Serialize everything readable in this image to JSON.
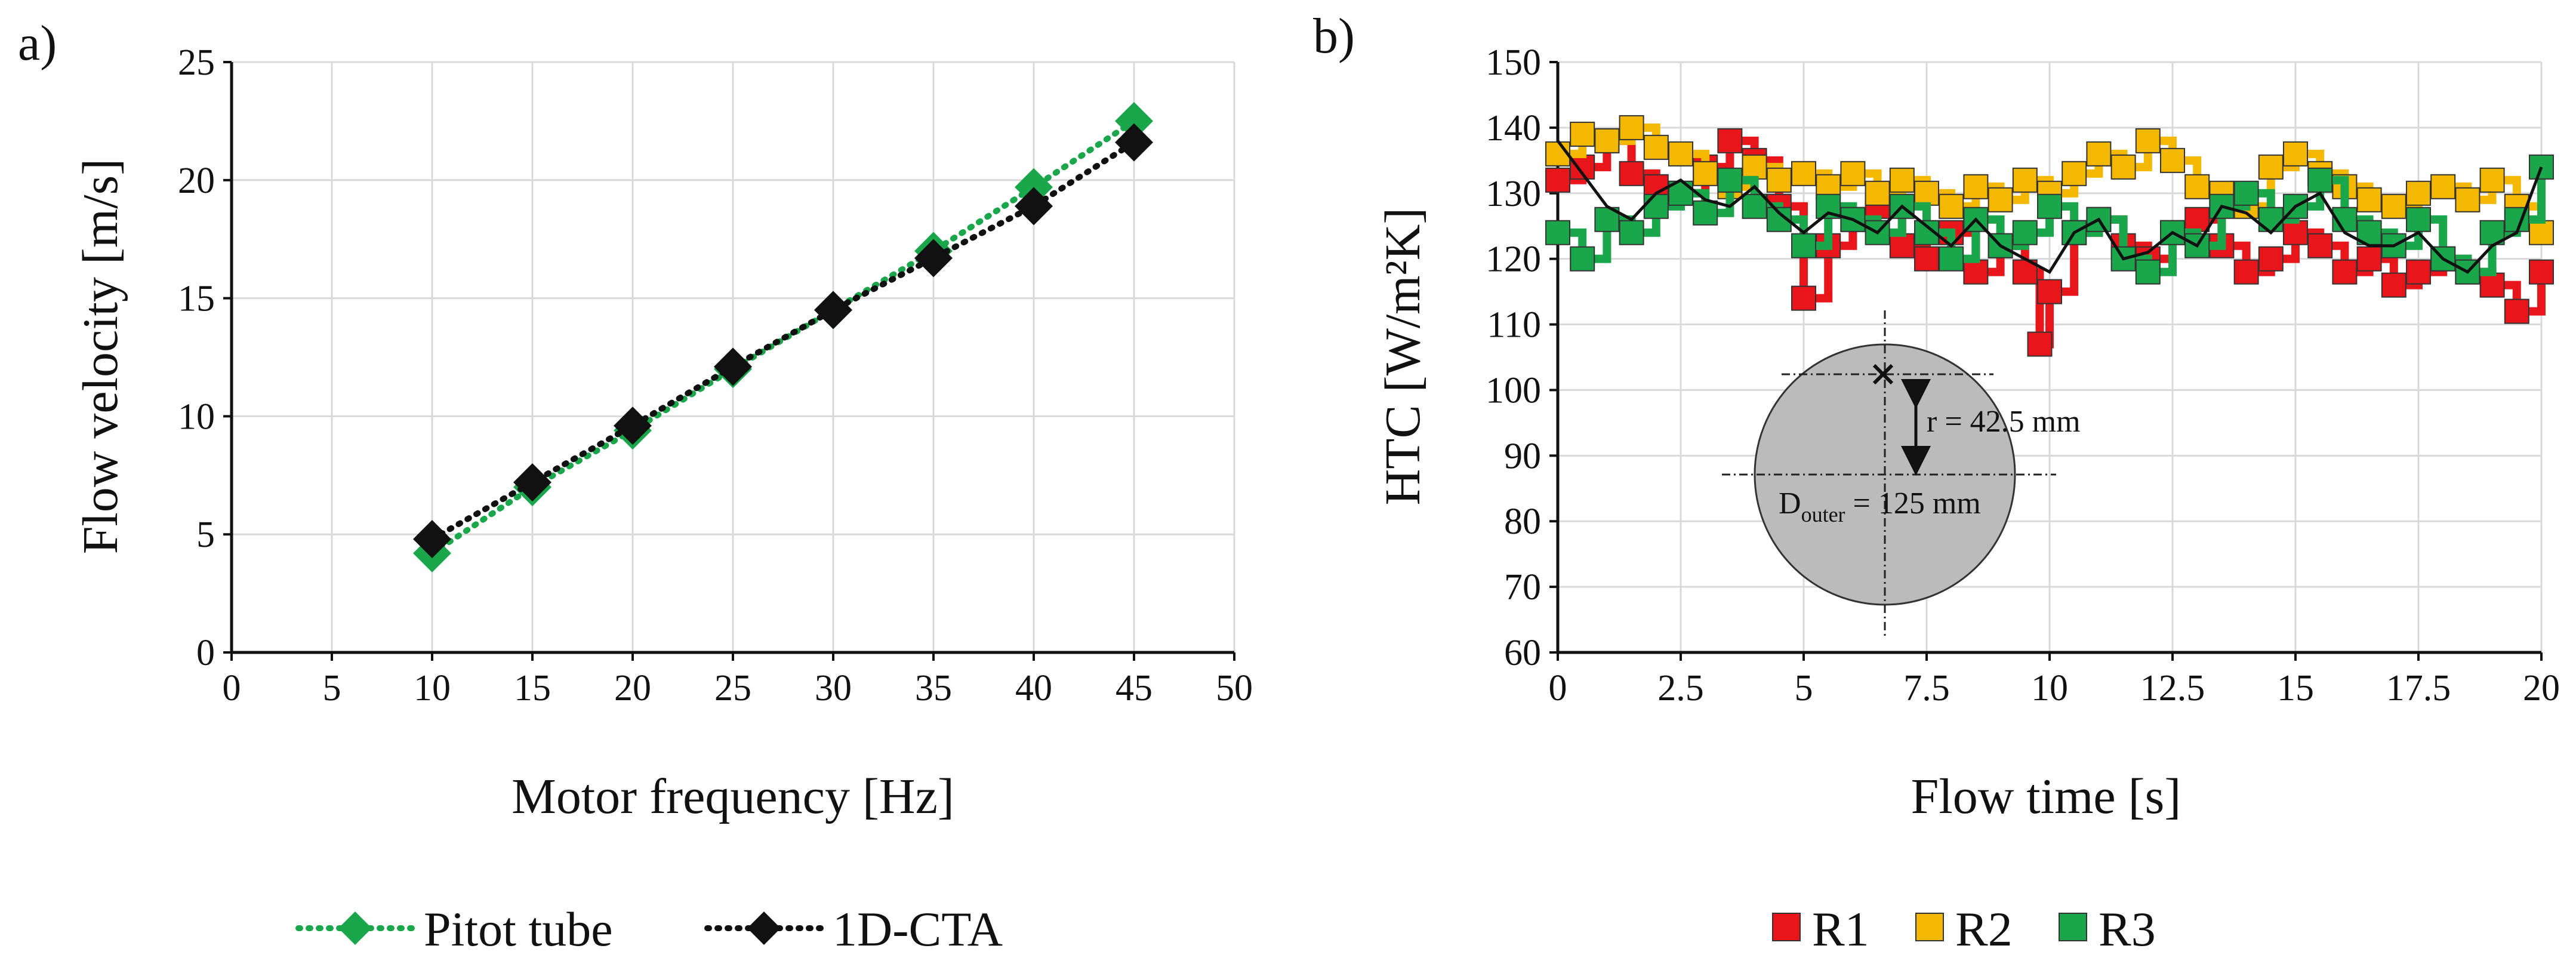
{
  "chart_data": [
    {
      "type": "scatter",
      "panel_label": "a)",
      "xlabel": "Motor frequency [Hz]",
      "ylabel": "Flow velocity [m/s]",
      "xlim": [
        0,
        50
      ],
      "ylim": [
        0,
        25
      ],
      "xticks": [
        "0",
        "5",
        "10",
        "15",
        "20",
        "25",
        "30",
        "35",
        "40",
        "45",
        "50"
      ],
      "yticks": [
        "0",
        "5",
        "10",
        "15",
        "20",
        "25"
      ],
      "grid": true,
      "legend_position": "bottom",
      "series": [
        {
          "name": "Pitot tube",
          "color": "#1aa64a",
          "marker": "diamond",
          "line": "dotted",
          "x": [
            10,
            15,
            20,
            25,
            30,
            35,
            40,
            45
          ],
          "values": [
            4.2,
            7.0,
            9.4,
            12.0,
            14.5,
            17.0,
            19.7,
            22.5
          ]
        },
        {
          "name": "1D-CTA",
          "color": "#111111",
          "marker": "diamond",
          "line": "dotted",
          "x": [
            10,
            15,
            20,
            25,
            30,
            35,
            40,
            45
          ],
          "values": [
            4.8,
            7.2,
            9.6,
            12.1,
            14.5,
            16.7,
            18.9,
            21.6
          ]
        }
      ]
    },
    {
      "type": "line",
      "panel_label": "b)",
      "xlabel": "Flow time [s]",
      "ylabel": "HTC [W/m²K]",
      "xlim": [
        0,
        20
      ],
      "ylim": [
        60,
        150
      ],
      "xticks": [
        "0",
        "2.5",
        "5",
        "7.5",
        "10",
        "12.5",
        "15",
        "17.5",
        "20"
      ],
      "yticks": [
        "60",
        "70",
        "80",
        "90",
        "100",
        "110",
        "120",
        "130",
        "140",
        "150"
      ],
      "grid": true,
      "legend_position": "bottom",
      "series": [
        {
          "name": "R1",
          "color": "#e8161b",
          "x": [
            0,
            0.5,
            1,
            1.5,
            2,
            2.5,
            3,
            3.5,
            4,
            4.5,
            5,
            5.5,
            6,
            6.5,
            7,
            7.5,
            8,
            8.5,
            9,
            9.5,
            9.8,
            10,
            10.5,
            11,
            11.5,
            12,
            12.5,
            13,
            13.5,
            14,
            14.5,
            15,
            15.5,
            16,
            16.5,
            17,
            17.5,
            18,
            18.5,
            19,
            19.5,
            20
          ],
          "values": [
            132,
            134,
            138,
            133,
            131,
            130,
            134,
            138,
            135,
            128,
            114,
            122,
            126,
            128,
            122,
            120,
            124,
            118,
            122,
            118,
            107,
            115,
            124,
            126,
            122,
            120,
            124,
            126,
            122,
            118,
            120,
            124,
            122,
            118,
            120,
            116,
            118,
            120,
            118,
            116,
            112,
            118
          ]
        },
        {
          "name": "R2",
          "color": "#f5b800",
          "x": [
            0,
            0.5,
            1,
            1.5,
            2,
            2.5,
            3,
            3.5,
            4,
            4.5,
            5,
            5.5,
            6,
            6.5,
            7,
            7.5,
            8,
            8.5,
            9,
            9.5,
            10,
            10.5,
            11,
            11.5,
            12,
            12.5,
            13,
            13.5,
            14,
            14.5,
            15,
            15.5,
            16,
            16.5,
            17,
            17.5,
            18,
            18.5,
            19,
            19.5,
            20
          ],
          "values": [
            136,
            139,
            138,
            140,
            137,
            136,
            133,
            131,
            134,
            132,
            133,
            131,
            133,
            130,
            132,
            130,
            128,
            131,
            129,
            132,
            130,
            133,
            136,
            134,
            138,
            135,
            131,
            130,
            128,
            134,
            136,
            133,
            131,
            129,
            128,
            130,
            131,
            129,
            132,
            128,
            124
          ]
        },
        {
          "name": "R3",
          "color": "#1aa64a",
          "x": [
            0,
            0.5,
            1,
            1.5,
            2,
            2.5,
            3,
            3.5,
            4,
            4.5,
            5,
            5.5,
            6,
            6.5,
            7,
            7.5,
            8,
            8.5,
            9,
            9.5,
            10,
            10.5,
            11,
            11.5,
            12,
            12.5,
            13,
            13.5,
            14,
            14.5,
            15,
            15.5,
            16,
            16.5,
            17,
            17.5,
            18,
            18.5,
            19,
            19.5,
            20
          ],
          "values": [
            124,
            120,
            126,
            124,
            128,
            130,
            127,
            132,
            128,
            126,
            122,
            128,
            126,
            124,
            128,
            124,
            120,
            126,
            122,
            124,
            128,
            124,
            126,
            120,
            118,
            124,
            122,
            128,
            130,
            126,
            128,
            132,
            126,
            124,
            122,
            126,
            120,
            118,
            124,
            126,
            134
          ]
        }
      ],
      "mean_trace": {
        "color": "#111111",
        "x": [
          0,
          0.5,
          1,
          1.5,
          2,
          2.5,
          3,
          3.5,
          4,
          4.5,
          5,
          5.5,
          6,
          6.5,
          7,
          7.5,
          8,
          8.5,
          9,
          9.5,
          10,
          10.5,
          11,
          11.5,
          12,
          12.5,
          13,
          13.5,
          14,
          14.5,
          15,
          15.5,
          16,
          16.5,
          17,
          17.5,
          18,
          18.5,
          19,
          19.5,
          20
        ],
        "values": [
          138,
          133,
          128,
          126,
          130,
          132,
          129,
          128,
          131,
          127,
          124,
          127,
          126,
          124,
          128,
          125,
          122,
          126,
          122,
          120,
          118,
          124,
          126,
          120,
          121,
          124,
          122,
          128,
          127,
          124,
          128,
          130,
          124,
          122,
          122,
          124,
          120,
          118,
          122,
          124,
          134
        ]
      },
      "annotation": {
        "radius_label": "r = 42.5 mm",
        "diameter_label_main": "D",
        "diameter_label_sub": "outer",
        "diameter_label_value": " = 125 mm",
        "fill": "#bbbbbb"
      }
    }
  ]
}
